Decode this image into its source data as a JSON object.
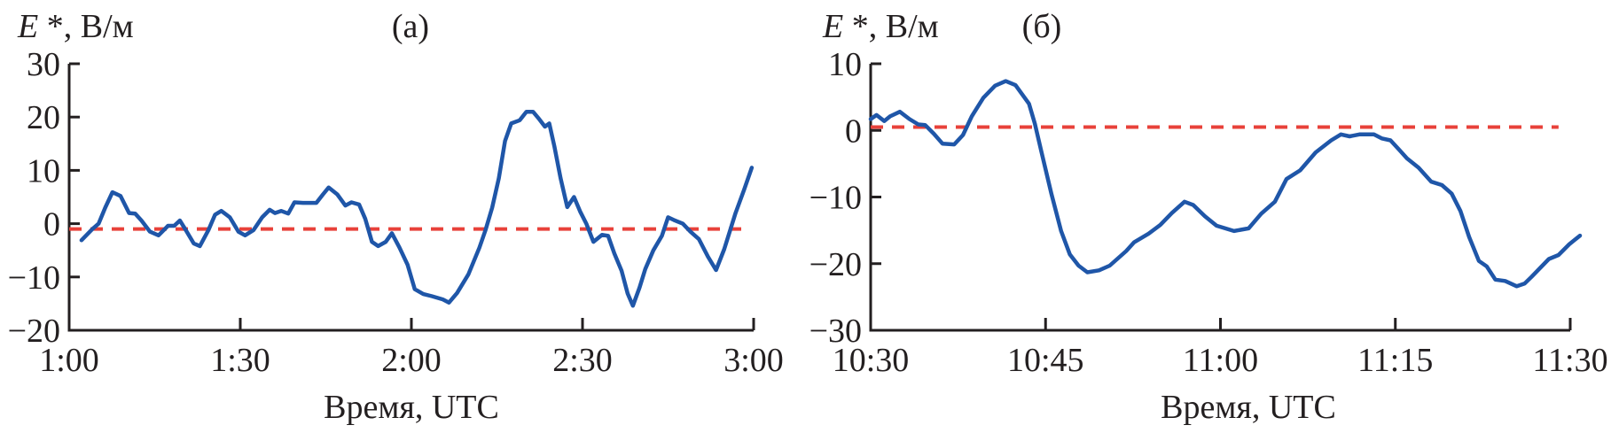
{
  "chart_data": [
    {
      "type": "line",
      "panel_label": "(а)",
      "ylabel": "E *, В/м",
      "ylabel_symbol": "E",
      "ylabel_rest": " *, В/м",
      "xlabel": "Время, UTC",
      "xlim": [
        "1:00",
        "3:00"
      ],
      "ylim": [
        -20,
        30
      ],
      "xticks": [
        "1:00",
        "1:30",
        "2:00",
        "2:30",
        "3:00"
      ],
      "yticks": [
        "30",
        "20",
        "10",
        "0",
        "−10",
        "−20"
      ],
      "ytick_values": [
        30,
        20,
        10,
        0,
        -10,
        -20
      ],
      "grid": false,
      "colors": {
        "series": "#1f56a8",
        "reference": "#e8413a"
      },
      "reference_line": {
        "y": -1,
        "style": "dashed",
        "x": [
          "1:00",
          "2:59"
        ]
      },
      "series": [
        {
          "points": [
            [
              "1:02:10",
              -3.1
            ],
            [
              "1:04:05",
              -1
            ],
            [
              "1:05:10",
              0
            ],
            [
              "1:06:20",
              3
            ],
            [
              "1:07:35",
              5.9
            ],
            [
              "1:09:00",
              5.2
            ],
            [
              "1:10:30",
              2
            ],
            [
              "1:11:35",
              1.9
            ],
            [
              "1:12:40",
              0.6
            ],
            [
              "1:14:10",
              -1.5
            ],
            [
              "1:15:40",
              -2.2
            ],
            [
              "1:17:20",
              -0.4
            ],
            [
              "1:18:25",
              -0.4
            ],
            [
              "1:19:25",
              0.6
            ],
            [
              "1:20:20",
              -1
            ],
            [
              "1:21:50",
              -3.7
            ],
            [
              "1:22:55",
              -4.2
            ],
            [
              "1:24:25",
              -1.2
            ],
            [
              "1:25:35",
              1.7
            ],
            [
              "1:26:40",
              2.4
            ],
            [
              "1:28:10",
              1.2
            ],
            [
              "1:29:40",
              -1.5
            ],
            [
              "1:30:50",
              -2.2
            ],
            [
              "1:32:20",
              -1.2
            ],
            [
              "1:33:50",
              1.2
            ],
            [
              "1:35:10",
              2.6
            ],
            [
              "1:36:05",
              2
            ],
            [
              "1:37:10",
              2.4
            ],
            [
              "1:38:25",
              1.9
            ],
            [
              "1:39:30",
              4
            ],
            [
              "1:41:00",
              3.9
            ],
            [
              "1:43:20",
              3.9
            ],
            [
              "1:44:30",
              5.5
            ],
            [
              "1:45:30",
              6.8
            ],
            [
              "1:47:00",
              5.5
            ],
            [
              "1:48:25",
              3.4
            ],
            [
              "1:49:30",
              4
            ],
            [
              "1:50:50",
              3.6
            ],
            [
              "1:51:55",
              0.9
            ],
            [
              "1:53:05",
              -3.4
            ],
            [
              "1:54:10",
              -4.2
            ],
            [
              "1:55:30",
              -3.4
            ],
            [
              "1:56:35",
              -1.8
            ],
            [
              "1:57:55",
              -4.5
            ],
            [
              "1:59:20",
              -7.7
            ],
            [
              "2:00:35",
              -12.3
            ],
            [
              "2:02:05",
              -13.2
            ],
            [
              "2:03:35",
              -13.6
            ],
            [
              "2:05:30",
              -14.2
            ],
            [
              "2:06:35",
              -14.8
            ],
            [
              "2:08:00",
              -13
            ],
            [
              "2:10:00",
              -9.5
            ],
            [
              "2:11:55",
              -4.5
            ],
            [
              "2:13:00",
              -1.2
            ],
            [
              "2:14:10",
              3
            ],
            [
              "2:15:20",
              8.5
            ],
            [
              "2:16:25",
              15.5
            ],
            [
              "2:17:30",
              18.8
            ],
            [
              "2:19:00",
              19.4
            ],
            [
              "2:20:10",
              21
            ],
            [
              "2:21:20",
              21
            ],
            [
              "2:22:25",
              19.6
            ],
            [
              "2:23:25",
              18.2
            ],
            [
              "2:24:10",
              18.8
            ],
            [
              "2:25:05",
              14.4
            ],
            [
              "2:26:10",
              8.5
            ],
            [
              "2:27:20",
              3.1
            ],
            [
              "2:28:30",
              5
            ],
            [
              "2:29:35",
              2.3
            ],
            [
              "2:30:40",
              0
            ],
            [
              "2:31:55",
              -3.4
            ],
            [
              "2:33:25",
              -2.1
            ],
            [
              "2:34:30",
              -2.3
            ],
            [
              "2:35:35",
              -5.6
            ],
            [
              "2:36:50",
              -8.8
            ],
            [
              "2:37:55",
              -13.1
            ],
            [
              "2:38:50",
              -15.4
            ],
            [
              "2:40:00",
              -12
            ],
            [
              "2:41:00",
              -8.5
            ],
            [
              "2:42:25",
              -5
            ],
            [
              "2:43:55",
              -2.3
            ],
            [
              "2:45:00",
              1.2
            ],
            [
              "2:46:00",
              0.7
            ],
            [
              "2:47:35",
              0
            ],
            [
              "2:48:55",
              -1.5
            ],
            [
              "2:50:25",
              -2.9
            ],
            [
              "2:52:00",
              -6.2
            ],
            [
              "2:53:25",
              -8.7
            ],
            [
              "2:54:50",
              -4.8
            ],
            [
              "2:56:50",
              2
            ],
            [
              "2:58:20",
              6.4
            ],
            [
              "2:59:40",
              10.5
            ]
          ]
        }
      ]
    },
    {
      "type": "line",
      "panel_label": "(б)",
      "ylabel": "E *, В/м",
      "ylabel_symbol": "E",
      "ylabel_rest": " *, В/м",
      "xlabel": "Время, UTC",
      "xlim": [
        "10:30",
        "11:30"
      ],
      "ylim": [
        -30,
        10
      ],
      "xticks": [
        "10:30",
        "10:45",
        "11:00",
        "11:15",
        "11:30"
      ],
      "yticks": [
        "10",
        "0",
        "−10",
        "−20",
        "−30"
      ],
      "ytick_values": [
        10,
        0,
        -10,
        -20,
        -30
      ],
      "grid": false,
      "colors": {
        "series": "#1f56a8",
        "reference": "#e8413a"
      },
      "reference_line": {
        "y": 0.5,
        "style": "dashed",
        "x": [
          "10:30",
          "11:29"
        ]
      },
      "series": [
        {
          "points": [
            [
              "10:30:00",
              1.7
            ],
            [
              "10:30:30",
              2.3
            ],
            [
              "10:31:10",
              1.4
            ],
            [
              "10:31:40",
              2.1
            ],
            [
              "10:32:30",
              2.8
            ],
            [
              "10:33:20",
              1.7
            ],
            [
              "10:34:05",
              0.9
            ],
            [
              "10:34:40",
              0.8
            ],
            [
              "10:35:25",
              -0.5
            ],
            [
              "10:36:10",
              -2
            ],
            [
              "10:37:10",
              -2.1
            ],
            [
              "10:37:55",
              -0.7
            ],
            [
              "10:38:40",
              2.1
            ],
            [
              "10:39:40",
              4.9
            ],
            [
              "10:40:40",
              6.7
            ],
            [
              "10:41:35",
              7.4
            ],
            [
              "10:42:25",
              6.8
            ],
            [
              "10:43:35",
              4
            ],
            [
              "10:44:05",
              1
            ],
            [
              "10:44:40",
              -3.4
            ],
            [
              "10:45:30",
              -9.5
            ],
            [
              "10:46:20",
              -15.1
            ],
            [
              "10:47:05",
              -18.6
            ],
            [
              "10:47:50",
              -20.3
            ],
            [
              "10:48:35",
              -21.3
            ],
            [
              "10:49:35",
              -21
            ],
            [
              "10:50:30",
              -20.3
            ],
            [
              "10:51:55",
              -18.1
            ],
            [
              "10:52:35",
              -16.8
            ],
            [
              "10:53:50",
              -15.5
            ],
            [
              "10:54:50",
              -14.2
            ],
            [
              "10:55:50",
              -12.4
            ],
            [
              "10:56:55",
              -10.7
            ],
            [
              "10:57:40",
              -11.2
            ],
            [
              "10:58:40",
              -12.9
            ],
            [
              "10:59:40",
              -14.3
            ],
            [
              "11:01:10",
              -15.1
            ],
            [
              "11:02:25",
              -14.7
            ],
            [
              "11:03:30",
              -12.5
            ],
            [
              "11:04:40",
              -10.7
            ],
            [
              "11:05:40",
              -7.3
            ],
            [
              "11:06:50",
              -6
            ],
            [
              "11:08:10",
              -3.3
            ],
            [
              "11:09:30",
              -1.5
            ],
            [
              "11:10:20",
              -0.6
            ],
            [
              "11:11:05",
              -0.9
            ],
            [
              "11:11:55",
              -0.6
            ],
            [
              "11:13:10",
              -0.6
            ],
            [
              "11:13:50",
              -1.2
            ],
            [
              "11:14:35",
              -1.5
            ],
            [
              "11:15:20",
              -2.9
            ],
            [
              "11:16:00",
              -4.2
            ],
            [
              "11:17:00",
              -5.6
            ],
            [
              "11:18:05",
              -7.7
            ],
            [
              "11:19:00",
              -8.2
            ],
            [
              "11:19:50",
              -9.5
            ],
            [
              "11:20:35",
              -12.1
            ],
            [
              "11:21:20",
              -16
            ],
            [
              "11:22:10",
              -19.6
            ],
            [
              "11:22:50",
              -20.4
            ],
            [
              "11:23:35",
              -22.4
            ],
            [
              "11:24:25",
              -22.6
            ],
            [
              "11:25:25",
              -23.4
            ],
            [
              "11:26:05",
              -23
            ],
            [
              "11:26:40",
              -22
            ],
            [
              "11:28:10",
              -19.3
            ],
            [
              "11:29:00",
              -18.7
            ],
            [
              "11:29:55",
              -17.1
            ],
            [
              "11:30:50",
              -15.8
            ]
          ]
        }
      ]
    }
  ]
}
